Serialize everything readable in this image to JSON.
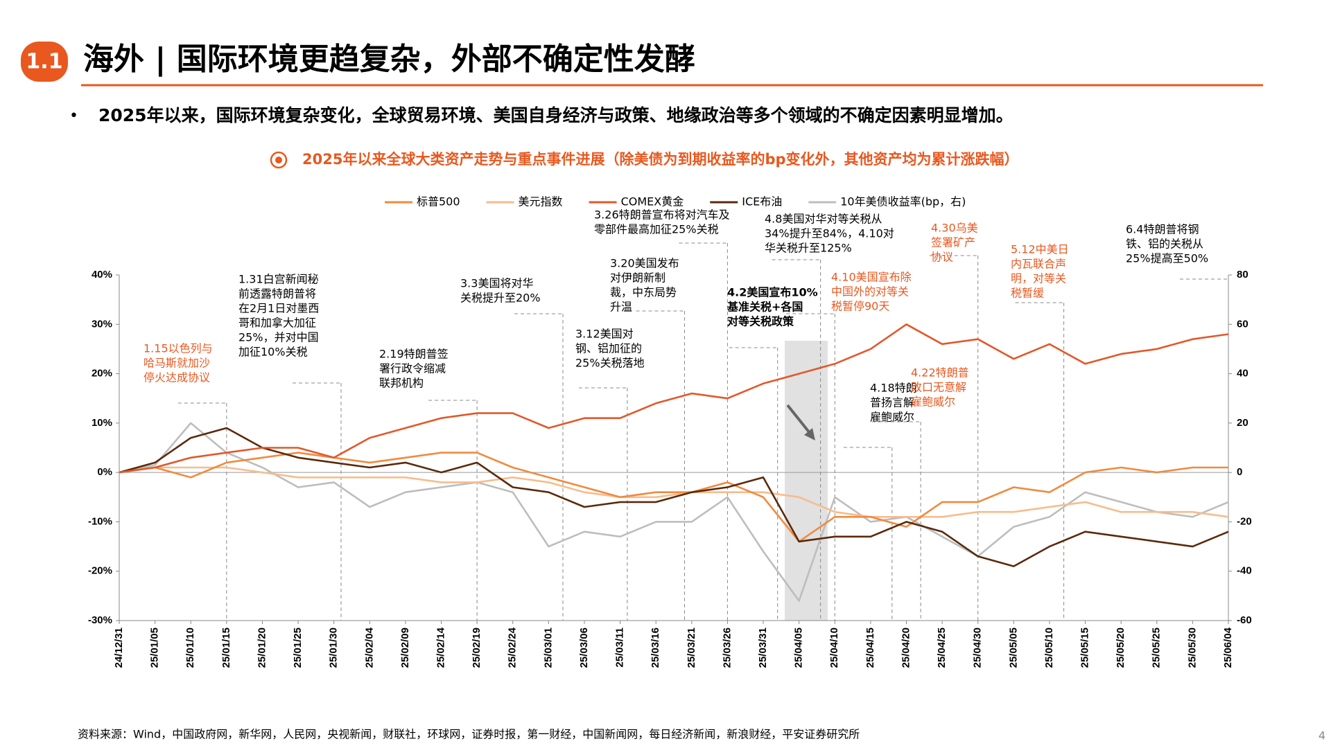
{
  "header": {
    "badge": "1.1",
    "title": "海外 | 国际环境更趋复杂，外部不确定性发酵"
  },
  "bullet": "2025年以来，国际环境复杂变化，全球贸易环境、美国自身经济与政策、地缘政治等多个领域的不确定因素明显增加。",
  "source": "资料来源：Wind，中国政府网，新华网，人民网，央视新闻，财联社，环球网，证券时报，第一财经，中国新闻网，每日经济新闻，新浪财经，平安证券研究所",
  "page_number": 4,
  "chart_data": {
    "type": "line",
    "title": "2025年以来全球大类资产走势与重点事件进展（除美债为到期收益率的bp变化外，其他资产均为累计涨跌幅）",
    "categories": [
      "24/12/31",
      "25/01/05",
      "25/01/10",
      "25/01/15",
      "25/01/20",
      "25/01/25",
      "25/01/30",
      "25/02/04",
      "25/02/09",
      "25/02/14",
      "25/02/19",
      "25/02/24",
      "25/03/01",
      "25/03/06",
      "25/03/11",
      "25/03/16",
      "25/03/21",
      "25/03/26",
      "25/03/31",
      "25/04/05",
      "25/04/10",
      "25/04/15",
      "25/04/20",
      "25/04/25",
      "25/04/30",
      "25/05/05",
      "25/05/10",
      "25/05/15",
      "25/05/20",
      "25/05/25",
      "25/05/30",
      "25/06/04"
    ],
    "series": [
      {
        "name": "标普500",
        "color": "#f08a3e",
        "values": [
          0,
          1,
          -1,
          2,
          3,
          4,
          3,
          2,
          3,
          4,
          4,
          1,
          -1,
          -3,
          -5,
          -4,
          -4,
          -2,
          -5,
          -14,
          -9,
          -9,
          -11,
          -6,
          -6,
          -3,
          -4,
          0,
          1,
          0,
          1,
          1
        ]
      },
      {
        "name": "美元指数",
        "color": "#f7bc8c",
        "values": [
          0,
          1,
          1,
          1,
          0,
          -1,
          -1,
          -1,
          -1,
          -2,
          -2,
          -1,
          -2,
          -4,
          -5,
          -5,
          -4,
          -4,
          -4,
          -5,
          -8,
          -9,
          -9,
          -9,
          -8,
          -8,
          -7,
          -6,
          -8,
          -8,
          -8,
          -9
        ]
      },
      {
        "name": "COMEX黄金",
        "color": "#e2582a",
        "values": [
          0,
          1,
          3,
          4,
          5,
          5,
          3,
          7,
          9,
          11,
          12,
          12,
          9,
          11,
          11,
          14,
          16,
          15,
          18,
          20,
          22,
          25,
          30,
          26,
          27,
          23,
          26,
          22,
          24,
          25,
          27,
          28
        ]
      },
      {
        "name": "ICE布油",
        "color": "#5a2a0c",
        "values": [
          0,
          2,
          7,
          9,
          5,
          3,
          2,
          1,
          2,
          0,
          2,
          -3,
          -4,
          -7,
          -6,
          -6,
          -4,
          -3,
          -1,
          -14,
          -13,
          -13,
          -10,
          -12,
          -17,
          -19,
          -15,
          -12,
          -13,
          -14,
          -15,
          -12
        ]
      },
      {
        "name": "10年美债收益率(bp，右)",
        "color": "#bdbdbd",
        "axis": "y2",
        "values": [
          0,
          3,
          20,
          8,
          2,
          -6,
          -4,
          -14,
          -8,
          -6,
          -4,
          -8,
          -30,
          -24,
          -26,
          -20,
          -20,
          -10,
          -32,
          -52,
          -10,
          -20,
          -18,
          -26,
          -34,
          -22,
          -18,
          -8,
          -12,
          -16,
          -18,
          -12
        ]
      }
    ],
    "ylim": [
      -30,
      40
    ],
    "yticks": [
      {
        "value": -30,
        "label": "-30%"
      },
      {
        "value": -20,
        "label": "-20%"
      },
      {
        "value": -10,
        "label": "-10%"
      },
      {
        "value": 0,
        "label": "0%"
      },
      {
        "value": 10,
        "label": "10%"
      },
      {
        "value": 20,
        "label": "20%"
      },
      {
        "value": 30,
        "label": "30%"
      },
      {
        "value": 40,
        "label": "40%"
      }
    ],
    "y2lim": [
      -60,
      80
    ],
    "y2ticks": [
      -60,
      -40,
      -20,
      0,
      20,
      40,
      60,
      80
    ],
    "annotations": [
      [
        "1.15以色列与",
        "哈马斯就加沙",
        "停火达成协议"
      ],
      [
        "1.31白宫新闻秘",
        "前透露特朗普将",
        "在2月1日对墨西",
        "哥和加拿大加征",
        "25%，并对中国",
        "加征10%关税"
      ],
      [
        "2.19特朗普签",
        "署行政令缩减",
        "联邦机构"
      ],
      [
        "3.3美国将对华",
        "关税提升至20%"
      ],
      [
        "3.12美国对",
        "钢、铝加征的",
        "25%关税落地"
      ],
      [
        "3.20美国发布",
        "对伊朗新制",
        "裁，中东局势",
        "升温"
      ],
      [
        "3.26特朗普宣布将对汽车及",
        "零部件最高加征25%关税"
      ],
      [
        "4.2美国宣布10%",
        "基准关税+各国",
        "对等关税政策"
      ],
      [
        "4.8美国对华对等关税从",
        "34%提升至84%，4.10对",
        "华关税升至125%"
      ],
      [
        "4.10美国宣布除",
        "中国外的对等关",
        "税暂停90天"
      ],
      [
        "4.18特朗",
        "普扬言解",
        "雇鲍威尔"
      ],
      [
        "4.22特朗普",
        "改口无意解",
        "雇鲍威尔"
      ],
      [
        "4.30乌美",
        "签署矿产",
        "协议"
      ],
      [
        "5.12中美日",
        "内瓦联合声",
        "明，对等关",
        "税暂缓"
      ],
      [
        "6.4特朗普将钢",
        "铁、铝的关税从",
        "25%提高至50%"
      ]
    ]
  }
}
